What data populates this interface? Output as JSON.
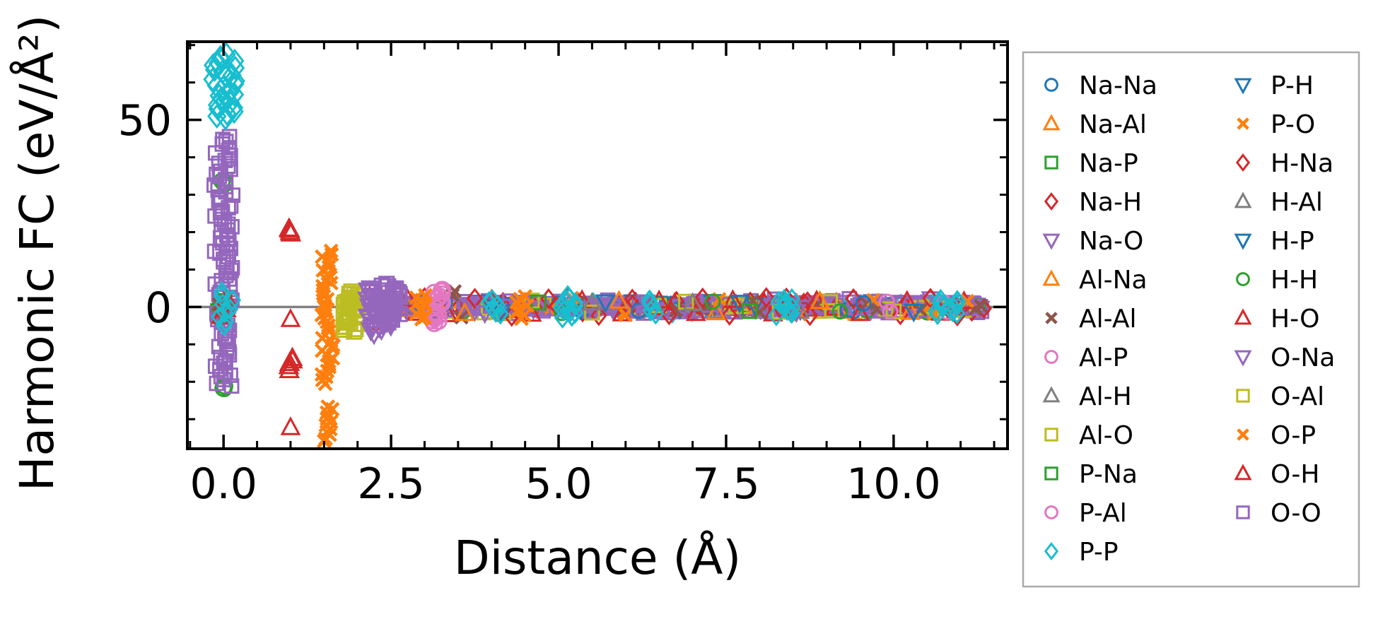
{
  "figure": {
    "background": "#ffffff",
    "spine_color": "#000000",
    "tick_color": "#000000"
  },
  "chart_data": {
    "type": "scatter",
    "title": "",
    "xlabel": "Distance (Å)",
    "ylabel": "Harmonic FC (eV/Å²)",
    "xlim": [
      -0.54,
      11.7
    ],
    "ylim": [
      -37.9,
      70.9
    ],
    "xticks": [
      0.0,
      2.5,
      5.0,
      7.5,
      10.0
    ],
    "xtick_labels": [
      "0.0",
      "2.5",
      "5.0",
      "7.5",
      "10.0"
    ],
    "yticks": [
      0,
      50
    ],
    "ytick_labels": [
      "0",
      "50"
    ],
    "minor_xtick_step": 0.5,
    "minor_ytick_step": 10,
    "grid": false,
    "zero_line": {
      "y": 0,
      "color": "#808080"
    },
    "legend_position": "outside-right",
    "legend_border_color": "#aaaaaa",
    "legend_columns": 2,
    "legend_col1_rows": 13,
    "legend_entries": [
      "Na-Na",
      "Na-Al",
      "Na-P",
      "Na-H",
      "Na-O",
      "Al-Na",
      "Al-Al",
      "Al-P",
      "Al-H",
      "Al-O",
      "P-Na",
      "P-Al",
      "P-P",
      "P-H",
      "P-O",
      "H-Na",
      "H-Al",
      "H-P",
      "H-H",
      "H-O",
      "O-Na",
      "O-Al",
      "O-P",
      "O-H",
      "O-O"
    ],
    "styles": {
      "Na-Na": {
        "marker": "circle",
        "color": "#1f77b4"
      },
      "Na-Al": {
        "marker": "triangle-up",
        "color": "#ff7f0e"
      },
      "Na-P": {
        "marker": "square",
        "color": "#2ca02c"
      },
      "Na-H": {
        "marker": "diamond",
        "color": "#d62728"
      },
      "Na-O": {
        "marker": "triangle-down",
        "color": "#9467bd"
      },
      "Al-Na": {
        "marker": "triangle-up",
        "color": "#ff7f0e"
      },
      "Al-Al": {
        "marker": "x",
        "color": "#8c564b"
      },
      "Al-P": {
        "marker": "circle",
        "color": "#e377c2"
      },
      "Al-H": {
        "marker": "triangle-up",
        "color": "#7f7f7f"
      },
      "Al-O": {
        "marker": "square",
        "color": "#bcbd22"
      },
      "P-Na": {
        "marker": "square",
        "color": "#2ca02c"
      },
      "P-Al": {
        "marker": "circle",
        "color": "#e377c2"
      },
      "P-P": {
        "marker": "diamond",
        "color": "#17becf"
      },
      "P-H": {
        "marker": "triangle-down",
        "color": "#1f77b4"
      },
      "P-O": {
        "marker": "x",
        "color": "#ff7f0e"
      },
      "H-Na": {
        "marker": "diamond",
        "color": "#d62728"
      },
      "H-Al": {
        "marker": "triangle-up",
        "color": "#7f7f7f"
      },
      "H-P": {
        "marker": "triangle-down",
        "color": "#1f77b4"
      },
      "H-H": {
        "marker": "circle",
        "color": "#2ca02c"
      },
      "H-O": {
        "marker": "triangle-up",
        "color": "#d62728"
      },
      "O-Na": {
        "marker": "triangle-down",
        "color": "#9467bd"
      },
      "O-Al": {
        "marker": "square",
        "color": "#bcbd22"
      },
      "O-P": {
        "marker": "x",
        "color": "#ff7f0e"
      },
      "O-H": {
        "marker": "triangle-up",
        "color": "#d62728"
      },
      "O-O": {
        "marker": "square",
        "color": "#9467bd"
      }
    },
    "clusters": [
      {
        "series": "H-H",
        "x": 0,
        "x_jitter": 0.03,
        "y_min": 32.8,
        "y_max": 33.8,
        "n": 3,
        "size": 27
      },
      {
        "series": "H-H",
        "x": 0,
        "x_jitter": 0.03,
        "y_min": -22.0,
        "y_max": -21.0,
        "n": 3,
        "size": 27
      },
      {
        "series": "Na-P",
        "x": 0,
        "x_jitter": 0.1,
        "y_min": -2.0,
        "y_max": 2.5,
        "n": 6,
        "size": 24
      },
      {
        "series": "Na-Na",
        "x": 0,
        "x_jitter": 0.05,
        "y_min": 0.2,
        "y_max": 1.2,
        "n": 3,
        "size": 22
      },
      {
        "series": "O-O",
        "x": 0,
        "x_jitter": 0.14,
        "y_min": 15.0,
        "y_max": 45.5,
        "n": 44,
        "size": 24
      },
      {
        "series": "O-O",
        "x": 0,
        "x_jitter": 0.14,
        "y_min": -21.0,
        "y_max": 15.0,
        "n": 50,
        "size": 24
      },
      {
        "series": "Al-Al",
        "x": 0,
        "x_jitter": 0.08,
        "y_min": -1.8,
        "y_max": 1.5,
        "n": 5,
        "size": 24
      },
      {
        "series": "H-O",
        "x": 0,
        "x_jitter": 0.06,
        "y_min": -2.6,
        "y_max": 2.4,
        "n": 4,
        "size": 24
      },
      {
        "series": "P-P",
        "x": 0,
        "x_jitter": 0.18,
        "y_min": 58.5,
        "y_max": 67.5,
        "n": 16,
        "size": 30
      },
      {
        "series": "P-P",
        "x": 0,
        "x_jitter": 0.18,
        "y_min": 50.5,
        "y_max": 57.5,
        "n": 13,
        "size": 30
      },
      {
        "series": "P-P",
        "x": 0,
        "x_jitter": 0.14,
        "y_min": -5.0,
        "y_max": 4.0,
        "n": 9,
        "size": 26
      },
      {
        "series": "H-O",
        "x": 1.0,
        "x_jitter": 0.03,
        "y_min": 19.6,
        "y_max": 21.0,
        "n": 4,
        "size": 26
      },
      {
        "series": "H-O",
        "x": 1.0,
        "x_jitter": 0.03,
        "y_min": -16.8,
        "y_max": -13.6,
        "n": 5,
        "size": 26
      },
      {
        "series": "P-O",
        "x": 1.55,
        "x_jitter": 0.09,
        "y_min": -20.5,
        "y_max": 15.0,
        "n": 42,
        "size": 26
      },
      {
        "series": "P-O",
        "x": 1.56,
        "x_jitter": 0.07,
        "y_min": -36.0,
        "y_max": -26.5,
        "n": 12,
        "size": 26
      },
      {
        "series": "Al-O",
        "x": 1.9,
        "x_jitter": 0.11,
        "y_min": -6.5,
        "y_max": 4.0,
        "n": 30,
        "size": 26
      },
      {
        "series": "Na-O",
        "x": 2.2,
        "x_jitter": 0.06,
        "y_min": -7.0,
        "y_max": 5.0,
        "n": 20,
        "size": 26
      },
      {
        "series": "O-O",
        "x": 2.5,
        "x_jitter": 0.14,
        "y_min": -4.0,
        "y_max": 6.0,
        "n": 34,
        "size": 26
      },
      {
        "series": "Na-O",
        "x": 2.42,
        "x_jitter": 0.1,
        "y_min": -6.0,
        "y_max": -2.0,
        "n": 10,
        "size": 26
      },
      {
        "series": "Al-P",
        "x": 3.2,
        "x_jitter": 0.07,
        "y_min": 1.2,
        "y_max": 4.6,
        "n": 9,
        "size": 28
      },
      {
        "series": "Al-P",
        "x": 3.18,
        "x_jitter": 0.07,
        "y_min": -4.2,
        "y_max": -1.2,
        "n": 9,
        "size": 28
      },
      {
        "series": "O-P",
        "x": 2.95,
        "x_jitter": 0.08,
        "y_min": -3.4,
        "y_max": 3.2,
        "n": 10,
        "size": 26
      },
      {
        "series": "O-P",
        "x": 4.45,
        "x_jitter": 0.1,
        "y_min": -3.0,
        "y_max": 2.8,
        "n": 8,
        "size": 26
      },
      {
        "series": "P-P",
        "x": 4.05,
        "x_jitter": 0.1,
        "y_min": -2.0,
        "y_max": 2.0,
        "n": 6,
        "size": 26
      },
      {
        "series": "P-P",
        "x": 5.15,
        "x_jitter": 0.12,
        "y_min": -2.8,
        "y_max": 2.8,
        "n": 12,
        "size": 26
      },
      {
        "series": "P-P",
        "x": 6.45,
        "x_jitter": 0.1,
        "y_min": -1.9,
        "y_max": 1.9,
        "n": 5,
        "size": 26
      },
      {
        "series": "P-P",
        "x": 8.35,
        "x_jitter": 0.15,
        "y_min": -2.3,
        "y_max": 2.3,
        "n": 10,
        "size": 26
      },
      {
        "series": "P-P",
        "x": 10.85,
        "x_jitter": 0.22,
        "y_min": -2.1,
        "y_max": 2.1,
        "n": 12,
        "size": 26
      }
    ],
    "points": [
      {
        "series": "H-O",
        "pts": [
          [
            1.0,
            -3.3
          ],
          [
            1.0,
            -32.2
          ],
          [
            2.18,
            2.8
          ],
          [
            2.2,
            -4.2
          ],
          [
            2.75,
            2.0
          ],
          [
            3.35,
            -2.0
          ],
          [
            4.0,
            1.9
          ],
          [
            4.6,
            -1.9
          ],
          [
            5.35,
            1.8
          ],
          [
            5.95,
            -1.8
          ],
          [
            6.5,
            1.7
          ],
          [
            7.05,
            -1.7
          ],
          [
            7.6,
            1.8
          ],
          [
            8.2,
            -1.8
          ],
          [
            8.85,
            1.7
          ],
          [
            9.5,
            -1.7
          ],
          [
            10.2,
            1.6
          ],
          [
            10.7,
            -1.6
          ],
          [
            11.05,
            1.5
          ]
        ]
      },
      {
        "series": "Al-Al",
        "pts": [
          [
            3.45,
            4.2
          ],
          [
            3.42,
            3.2
          ],
          [
            3.55,
            -2.8
          ],
          [
            5.3,
            1.2
          ],
          [
            6.75,
            -1.0
          ],
          [
            7.9,
            1.6
          ],
          [
            8.0,
            -1.4
          ],
          [
            9.6,
            0.9
          ],
          [
            10.4,
            -0.8
          ],
          [
            11.3,
            0.3
          ],
          [
            11.22,
            -0.5
          ]
        ]
      },
      {
        "series": "H-Na",
        "pts": [
          [
            3.0,
            2.5
          ],
          [
            3.75,
            2.3
          ],
          [
            4.3,
            -2.5
          ],
          [
            4.85,
            2.2
          ],
          [
            5.15,
            2.6
          ],
          [
            5.6,
            -2.3
          ],
          [
            6.1,
            2.1
          ],
          [
            6.65,
            -2.1
          ],
          [
            7.15,
            2.4
          ],
          [
            7.55,
            -2.2
          ],
          [
            8.1,
            2.5
          ],
          [
            8.4,
            2.4
          ],
          [
            8.75,
            -2.3
          ],
          [
            9.4,
            2.2
          ],
          [
            10.1,
            -2.1
          ],
          [
            10.55,
            2.3
          ],
          [
            10.95,
            -2.4
          ]
        ]
      },
      {
        "series": "O-P",
        "pts": [
          [
            5.2,
            2.4
          ],
          [
            6.0,
            -2.2
          ],
          [
            7.4,
            2.1
          ],
          [
            8.6,
            -2.0
          ],
          [
            9.7,
            1.9
          ],
          [
            10.6,
            -1.8
          ],
          [
            11.1,
            1.6
          ]
        ]
      },
      {
        "series": "Al-O",
        "pts": [
          [
            4.6,
            1.7
          ],
          [
            5.5,
            -1.5
          ],
          [
            6.9,
            1.4
          ],
          [
            8.3,
            -1.3
          ],
          [
            9.05,
            1.3
          ],
          [
            10.0,
            -1.2
          ]
        ]
      },
      {
        "series": "Na-Al",
        "pts": [
          [
            2.95,
            1.8
          ],
          [
            3.6,
            -1.7
          ],
          [
            5.9,
            1.6
          ],
          [
            7.35,
            -1.5
          ],
          [
            8.9,
            1.5
          ],
          [
            10.25,
            -1.4
          ]
        ]
      },
      {
        "series": "Na-Na",
        "pts": [
          [
            3.3,
            1.1
          ],
          [
            6.2,
            -1.0
          ],
          [
            9.55,
            1.0
          ]
        ]
      },
      {
        "series": "P-H",
        "pts": [
          [
            4.15,
            -1.4
          ],
          [
            5.7,
            1.3
          ],
          [
            7.7,
            1.2
          ],
          [
            10.3,
            -1.2
          ]
        ]
      },
      {
        "series": "H-Al",
        "pts": [
          [
            5.5,
            1.1
          ],
          [
            7.0,
            1.0
          ],
          [
            8.6,
            -1.1
          ]
        ]
      },
      {
        "series": "P-Al",
        "pts": [
          [
            9.9,
            1.4
          ],
          [
            9.95,
            -1.2
          ],
          [
            10.75,
            1.2
          ],
          [
            10.8,
            -1.3
          ]
        ]
      },
      {
        "series": "Na-P",
        "pts": [
          [
            4.7,
            1.2
          ],
          [
            7.85,
            -1.1
          ]
        ]
      },
      {
        "series": "H-H",
        "pts": [
          [
            5.05,
            -1.6
          ],
          [
            7.3,
            1.4
          ],
          [
            9.2,
            -1.2
          ]
        ]
      },
      {
        "series": "Na-O",
        "pts": [
          [
            3.9,
            -1.6
          ],
          [
            6.3,
            1.3
          ],
          [
            8.55,
            -1.3
          ]
        ]
      }
    ],
    "band": {
      "x_min": 2.55,
      "x_max": 11.35,
      "n": 650,
      "y_sigma": 0.75,
      "y_clip": 2.2,
      "size": 24,
      "mix": [
        [
          "O-O",
          0.5
        ],
        [
          "Na-O",
          0.08
        ],
        [
          "H-O",
          0.08
        ],
        [
          "H-Na",
          0.06
        ],
        [
          "O-P",
          0.06
        ],
        [
          "Al-O",
          0.06
        ],
        [
          "Al-Al",
          0.04
        ],
        [
          "P-P",
          0.03
        ],
        [
          "Na-Al",
          0.03
        ],
        [
          "H-H",
          0.02
        ],
        [
          "P-H",
          0.02
        ],
        [
          "Na-Na",
          0.01
        ],
        [
          "Al-P",
          0.01
        ]
      ]
    }
  }
}
